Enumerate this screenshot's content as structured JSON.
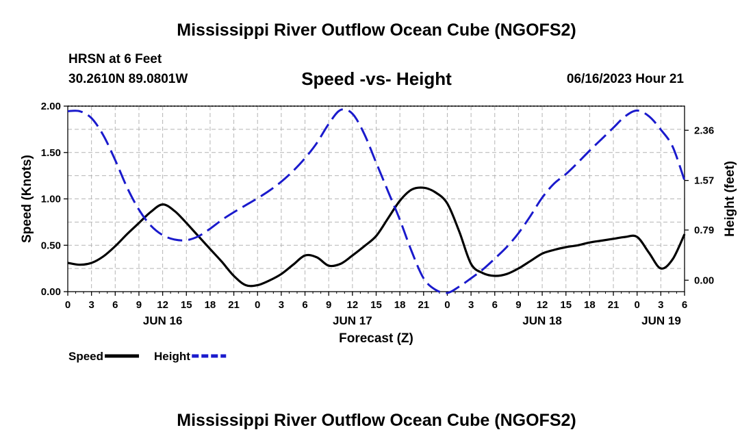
{
  "header": {
    "title": "Mississippi River Outflow Ocean Cube (NGOFS2)",
    "station": "HRSN at 6 Feet",
    "coords": "30.2610N  89.0801W",
    "subtitle": "Speed -vs- Height",
    "timestamp": "06/16/2023 Hour 21"
  },
  "footer": {
    "title": "Mississippi River Outflow Ocean Cube (NGOFS2)"
  },
  "colors": {
    "speed": "#000000",
    "height": "#1a1acc",
    "grid": "#b4b4b4"
  },
  "chart_data": {
    "type": "line",
    "title": "Speed -vs- Height",
    "xlabel": "Forecast (Z)",
    "ylabel": "Speed (Knots)",
    "y2label": "Height (feet)",
    "xlim": [
      0,
      78
    ],
    "ylim": [
      0,
      2.0
    ],
    "y2lim": [
      -0.18,
      2.74
    ],
    "x_ticks": [
      0,
      3,
      6,
      9,
      12,
      15,
      18,
      21,
      24,
      27,
      30,
      33,
      36,
      39,
      42,
      45,
      48,
      51,
      54,
      57,
      60,
      63,
      66,
      69,
      72,
      75,
      78
    ],
    "x_tick_labels": [
      "0",
      "3",
      "6",
      "9",
      "12",
      "15",
      "18",
      "21",
      "0",
      "3",
      "6",
      "9",
      "12",
      "15",
      "18",
      "21",
      "0",
      "3",
      "6",
      "9",
      "12",
      "15",
      "18",
      "21",
      "0",
      "3",
      "6"
    ],
    "date_labels": [
      {
        "x": 12,
        "label": "JUN 16"
      },
      {
        "x": 36,
        "label": "JUN 17"
      },
      {
        "x": 60,
        "label": "JUN 18"
      },
      {
        "x": 78,
        "label": "JUN 19"
      }
    ],
    "y_ticks": [
      0.0,
      0.5,
      1.0,
      1.5,
      2.0
    ],
    "y_tick_labels": [
      "0.00",
      "0.50",
      "1.00",
      "1.50",
      "2.00"
    ],
    "y2_ticks": [
      0.0,
      0.79,
      1.57,
      2.36
    ],
    "y2_tick_labels": [
      "0.00",
      "0.79",
      "1.57",
      "2.36"
    ],
    "legend": [
      {
        "name": "Speed",
        "style": "solid"
      },
      {
        "name": "Height",
        "style": "dashed"
      }
    ],
    "series": [
      {
        "name": "Speed",
        "axis": "left",
        "x": [
          0,
          1.5,
          3,
          4.5,
          6,
          7.5,
          9,
          10.5,
          12,
          13.5,
          15,
          16.5,
          18,
          19.5,
          21,
          22.5,
          24,
          25.5,
          27,
          28.5,
          30,
          31.5,
          33,
          34.5,
          36,
          37.5,
          39,
          40.5,
          42,
          43.5,
          45,
          46.5,
          48,
          49.5,
          51,
          52.5,
          54,
          55.5,
          57,
          58.5,
          60,
          61.5,
          63,
          64.5,
          66,
          67.5,
          69,
          70.5,
          72,
          73.5,
          75,
          76.5,
          78
        ],
        "values": [
          0.31,
          0.29,
          0.31,
          0.38,
          0.49,
          0.62,
          0.74,
          0.86,
          0.94,
          0.87,
          0.74,
          0.6,
          0.46,
          0.32,
          0.17,
          0.07,
          0.07,
          0.12,
          0.19,
          0.29,
          0.39,
          0.37,
          0.28,
          0.3,
          0.39,
          0.49,
          0.6,
          0.79,
          0.98,
          1.1,
          1.12,
          1.07,
          0.95,
          0.65,
          0.3,
          0.2,
          0.17,
          0.19,
          0.25,
          0.33,
          0.41,
          0.45,
          0.48,
          0.5,
          0.53,
          0.55,
          0.57,
          0.59,
          0.59,
          0.42,
          0.25,
          0.35,
          0.62
        ]
      },
      {
        "name": "Height",
        "axis": "right",
        "x": [
          0,
          1.5,
          3,
          4.5,
          6,
          7.5,
          9,
          10.5,
          12,
          13.5,
          15,
          16.5,
          18,
          19.5,
          21,
          22.5,
          24,
          25.5,
          27,
          28.5,
          30,
          31.5,
          33,
          34.5,
          36,
          37.5,
          39,
          40.5,
          42,
          43.5,
          45,
          46.5,
          48,
          49.5,
          51,
          52.5,
          54,
          55.5,
          57,
          58.5,
          60,
          61.5,
          63,
          64.5,
          66,
          67.5,
          69,
          70.5,
          72,
          73.5,
          75,
          76.5,
          78
        ],
        "values": [
          2.66,
          2.66,
          2.55,
          2.28,
          1.89,
          1.46,
          1.11,
          0.86,
          0.71,
          0.64,
          0.63,
          0.69,
          0.81,
          0.95,
          1.07,
          1.18,
          1.29,
          1.41,
          1.55,
          1.72,
          1.92,
          2.16,
          2.46,
          2.68,
          2.62,
          2.3,
          1.85,
          1.4,
          0.95,
          0.45,
          0.03,
          -0.15,
          -0.2,
          -0.1,
          0.03,
          0.17,
          0.34,
          0.52,
          0.74,
          1.01,
          1.3,
          1.52,
          1.67,
          1.85,
          2.04,
          2.22,
          2.4,
          2.58,
          2.67,
          2.58,
          2.37,
          2.1,
          1.57
        ]
      }
    ]
  }
}
